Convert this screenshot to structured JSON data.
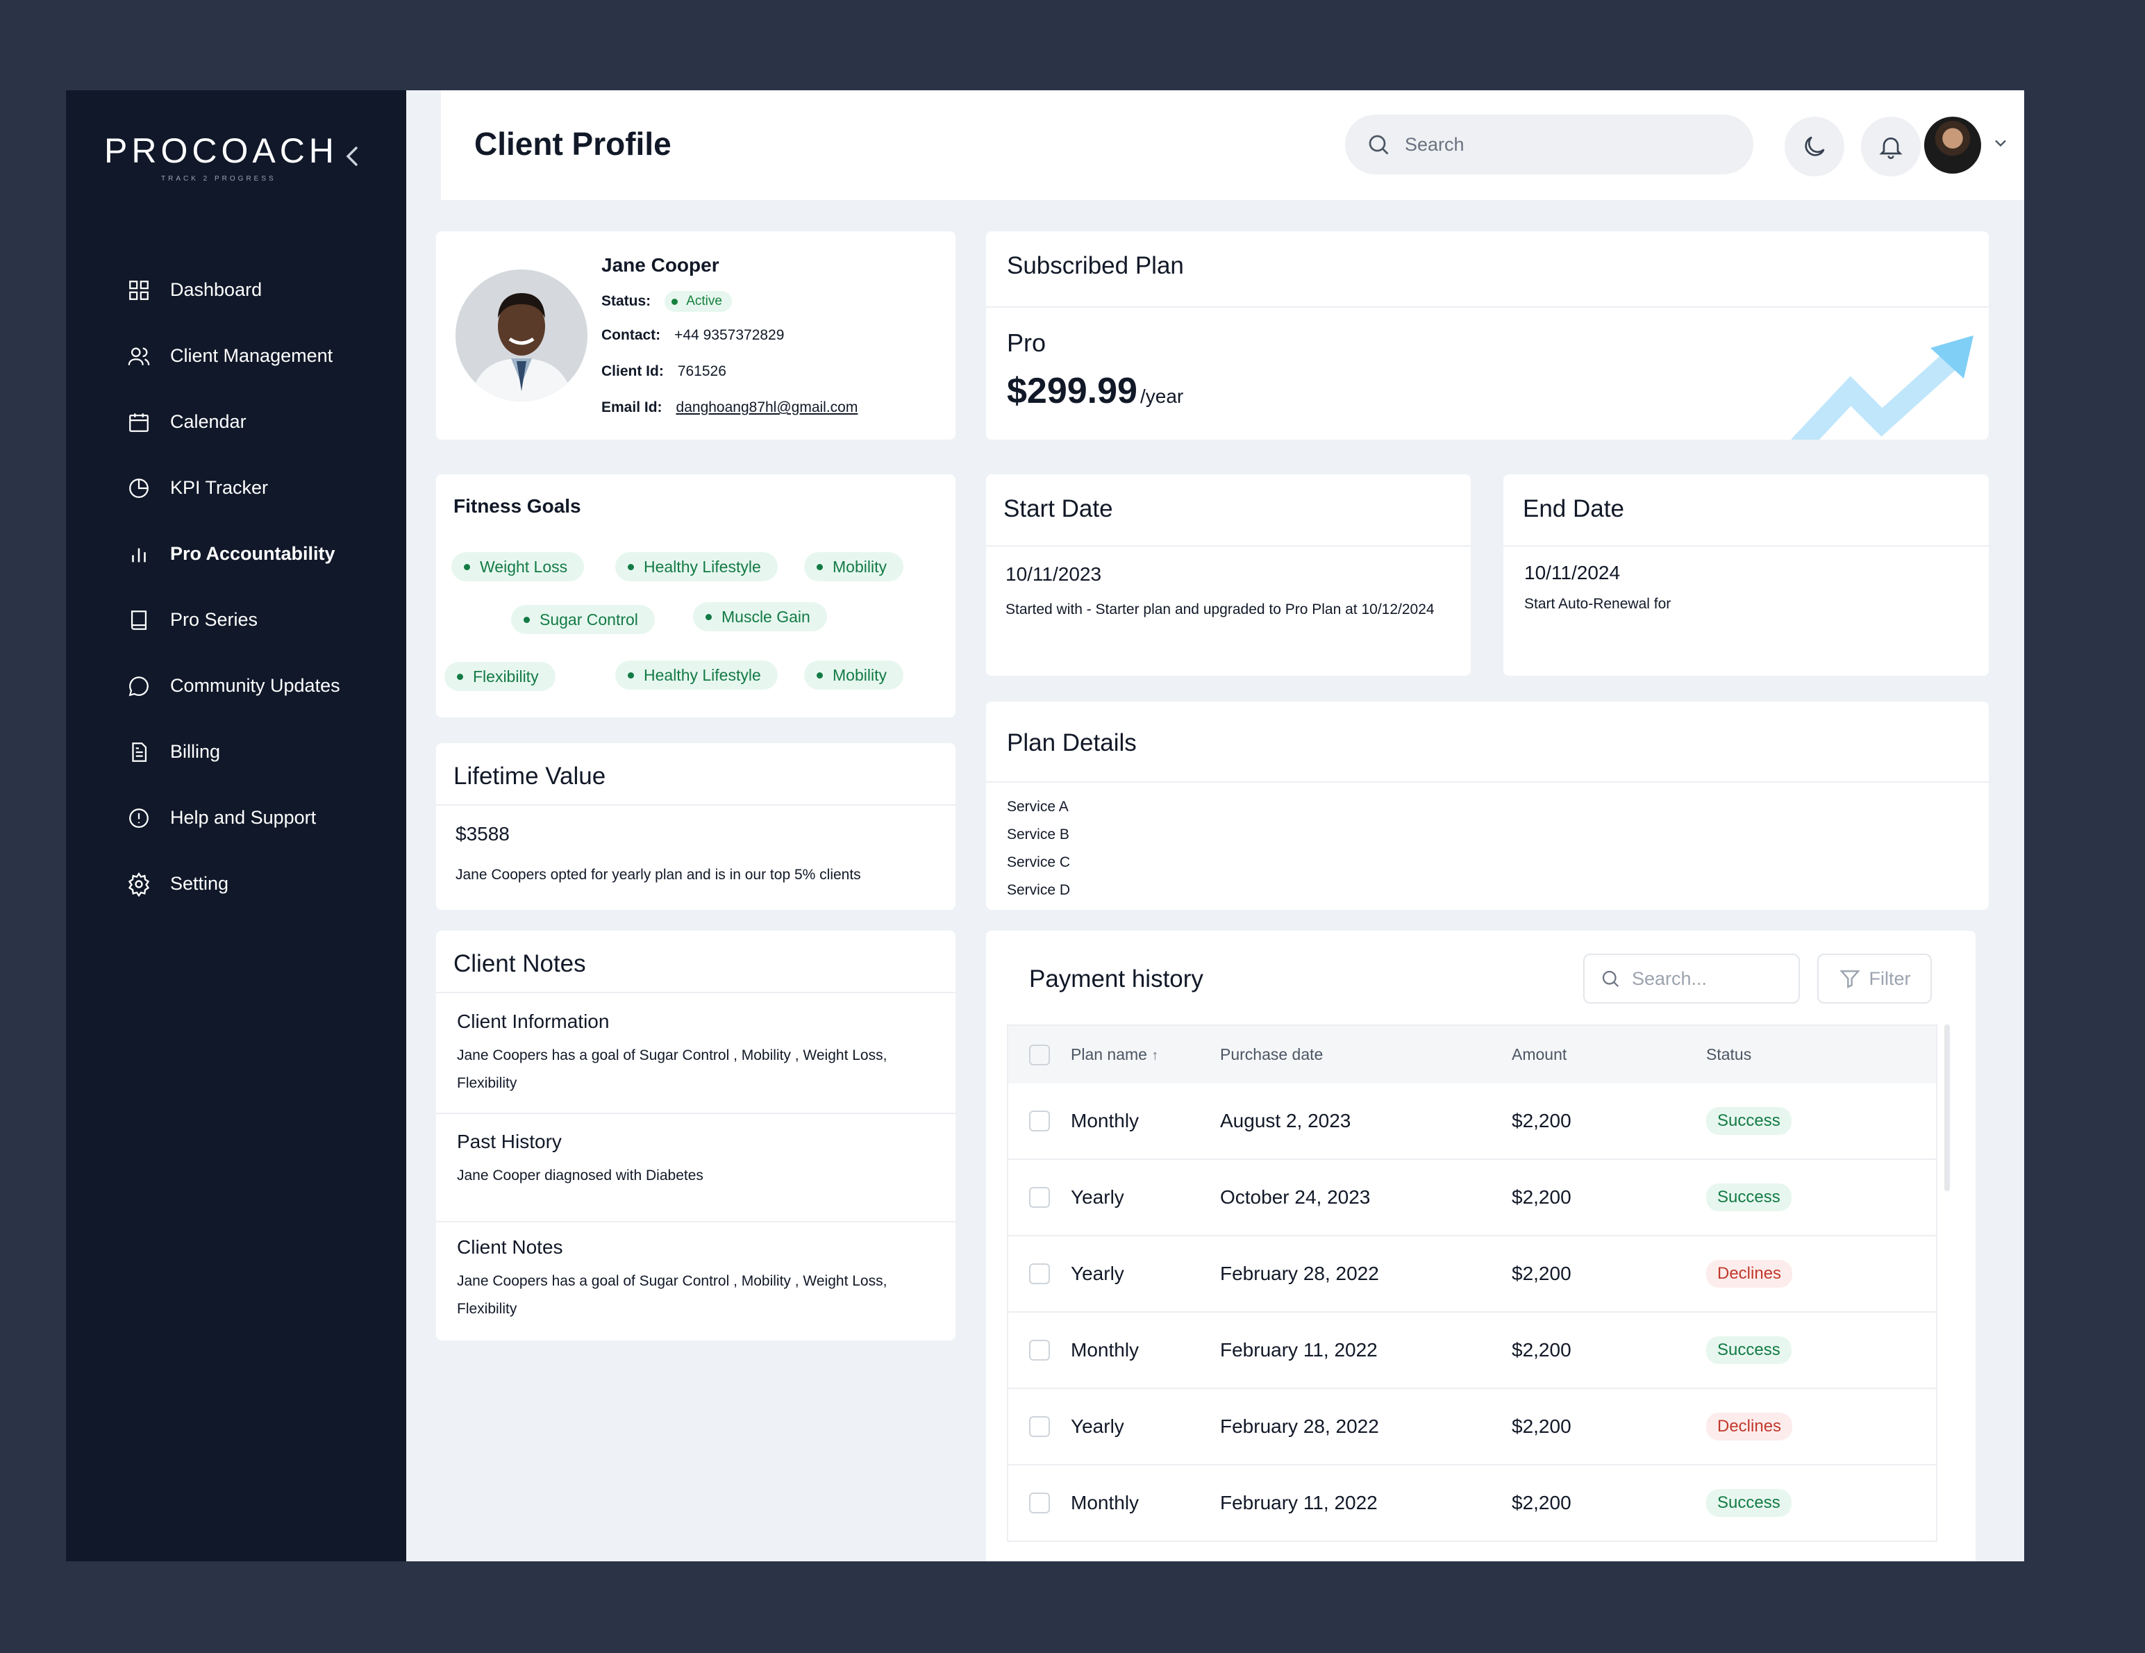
{
  "brand": {
    "logo": "PROCOACH",
    "tagline": "TRACK 2 PROGRESS"
  },
  "sidebar": {
    "items": [
      {
        "label": "Dashboard",
        "icon": "grid-icon"
      },
      {
        "label": "Client Management",
        "icon": "users-icon"
      },
      {
        "label": "Calendar",
        "icon": "calendar-icon"
      },
      {
        "label": "KPI Tracker",
        "icon": "pie-chart-icon"
      },
      {
        "label": "Pro Accountability",
        "icon": "bar-chart-icon",
        "active": true
      },
      {
        "label": "Pro Series",
        "icon": "book-icon"
      },
      {
        "label": "Community Updates",
        "icon": "chat-icon"
      },
      {
        "label": "Billing",
        "icon": "document-icon"
      },
      {
        "label": "Help and Support",
        "icon": "alert-circle-icon"
      },
      {
        "label": "Setting",
        "icon": "gear-icon"
      }
    ]
  },
  "header": {
    "title": "Client Profile",
    "search_placeholder": "Search"
  },
  "profile": {
    "name": "Jane Cooper",
    "status_label": "Status:",
    "status": "Active",
    "contact_label": "Contact:",
    "contact": "+44 9357372829",
    "client_id_label": "Client Id:",
    "client_id": "761526",
    "email_label": "Email Id:",
    "email": "danghoang87hl@gmail.com"
  },
  "fitness_goals": {
    "title": "Fitness Goals",
    "chips": [
      "Weight Loss",
      "Healthy Lifestyle",
      "Mobility",
      "Sugar Control",
      "Muscle Gain",
      "Flexibility",
      "Healthy Lifestyle",
      "Mobility"
    ]
  },
  "lifetime_value": {
    "title": "Lifetime Value",
    "amount": "$3588",
    "note": "Jane Coopers opted for yearly plan and is in our top 5% clients"
  },
  "client_notes": {
    "title": "Client Notes",
    "sections": [
      {
        "heading": "Client Information",
        "body": "Jane Coopers has a goal of Sugar Control , Mobility , Weight Loss, Flexibility"
      },
      {
        "heading": "Past History",
        "body": "Jane Cooper diagnosed with Diabetes"
      },
      {
        "heading": "Client Notes",
        "body": "Jane Coopers has a goal of Sugar Control , Mobility , Weight Loss, Flexibility"
      }
    ]
  },
  "subscribed_plan": {
    "title": "Subscribed Plan",
    "plan": "Pro",
    "price": "$299.99",
    "period": "/year",
    "accent": "#bfe6fb"
  },
  "start_date": {
    "title": "Start Date",
    "date": "10/11/2023",
    "note": "Started with - Starter plan and upgraded to Pro Plan at 10/12/2024"
  },
  "end_date": {
    "title": "End Date",
    "date": "10/11/2024",
    "note": "Start Auto-Renewal for"
  },
  "plan_details": {
    "title": "Plan Details",
    "services": [
      "Service A",
      "Service B",
      "Service C",
      "Service D"
    ]
  },
  "payment_history": {
    "title": "Payment history",
    "search_placeholder": "Search...",
    "filter_label": "Filter",
    "columns": {
      "plan": "Plan name",
      "date": "Purchase date",
      "amount": "Amount",
      "status": "Status"
    },
    "rows": [
      {
        "plan": "Monthly",
        "date": "August 2, 2023",
        "amount": "$2,200",
        "status": "Success"
      },
      {
        "plan": "Yearly",
        "date": "October 24, 2023",
        "amount": "$2,200",
        "status": "Success"
      },
      {
        "plan": "Yearly",
        "date": "February 28, 2022",
        "amount": "$2,200",
        "status": "Declines"
      },
      {
        "plan": "Monthly",
        "date": "February 11, 2022",
        "amount": "$2,200",
        "status": "Success"
      },
      {
        "plan": "Yearly",
        "date": "February 28, 2022",
        "amount": "$2,200",
        "status": "Declines"
      },
      {
        "plan": "Monthly",
        "date": "February 11, 2022",
        "amount": "$2,200",
        "status": "Success"
      }
    ]
  },
  "colors": {
    "sidebar": "#101829",
    "success": "#137a45",
    "decline": "#c0392b",
    "background": "#2b3446"
  }
}
